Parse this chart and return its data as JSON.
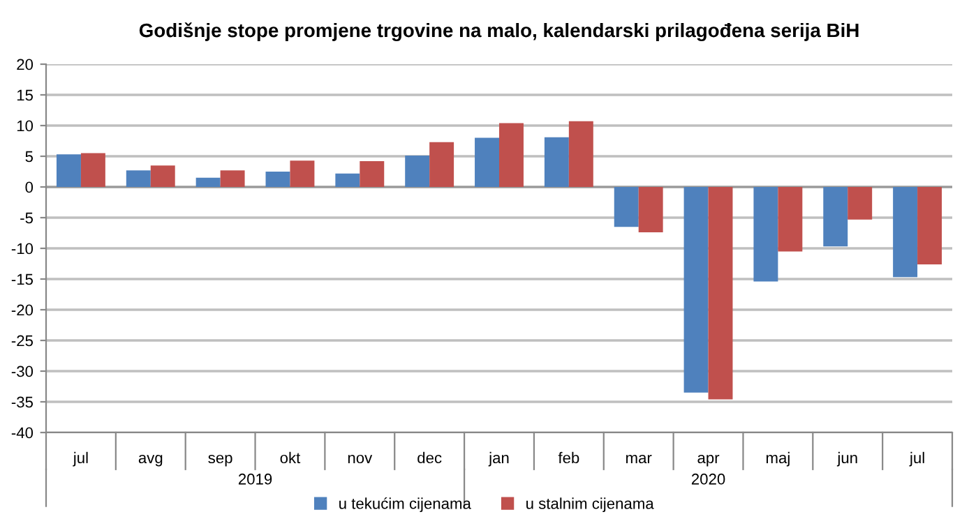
{
  "chart_data": {
    "type": "bar",
    "title": "Godišnje stope promjene trgovine na malo, kalendarski prilagođena serija BiH",
    "categories": [
      "jul",
      "avg",
      "sep",
      "okt",
      "nov",
      "dec",
      "jan",
      "feb",
      "mar",
      "apr",
      "maj",
      "jun",
      "jul"
    ],
    "series": [
      {
        "name": "u tekućim cijenama",
        "color": "#4f81bd",
        "values": [
          5.3,
          2.7,
          1.5,
          2.5,
          2.2,
          5.1,
          8.0,
          8.1,
          -6.5,
          -33.5,
          -15.4,
          -9.7,
          -14.7
        ]
      },
      {
        "name": "u stalnim cijenama",
        "color": "#c0504d",
        "values": [
          5.5,
          3.5,
          2.7,
          4.3,
          4.2,
          7.3,
          10.4,
          10.7,
          -7.4,
          -34.6,
          -10.5,
          -5.3,
          -12.6
        ]
      }
    ],
    "annotations": [
      "2019",
      "2020"
    ],
    "ylim": [
      -40,
      20
    ],
    "yticks": [
      -40,
      -35,
      -30,
      -25,
      -20,
      -15,
      -10,
      -5,
      0,
      5,
      10,
      15,
      20
    ],
    "grid": "y",
    "legend": "bottom"
  }
}
